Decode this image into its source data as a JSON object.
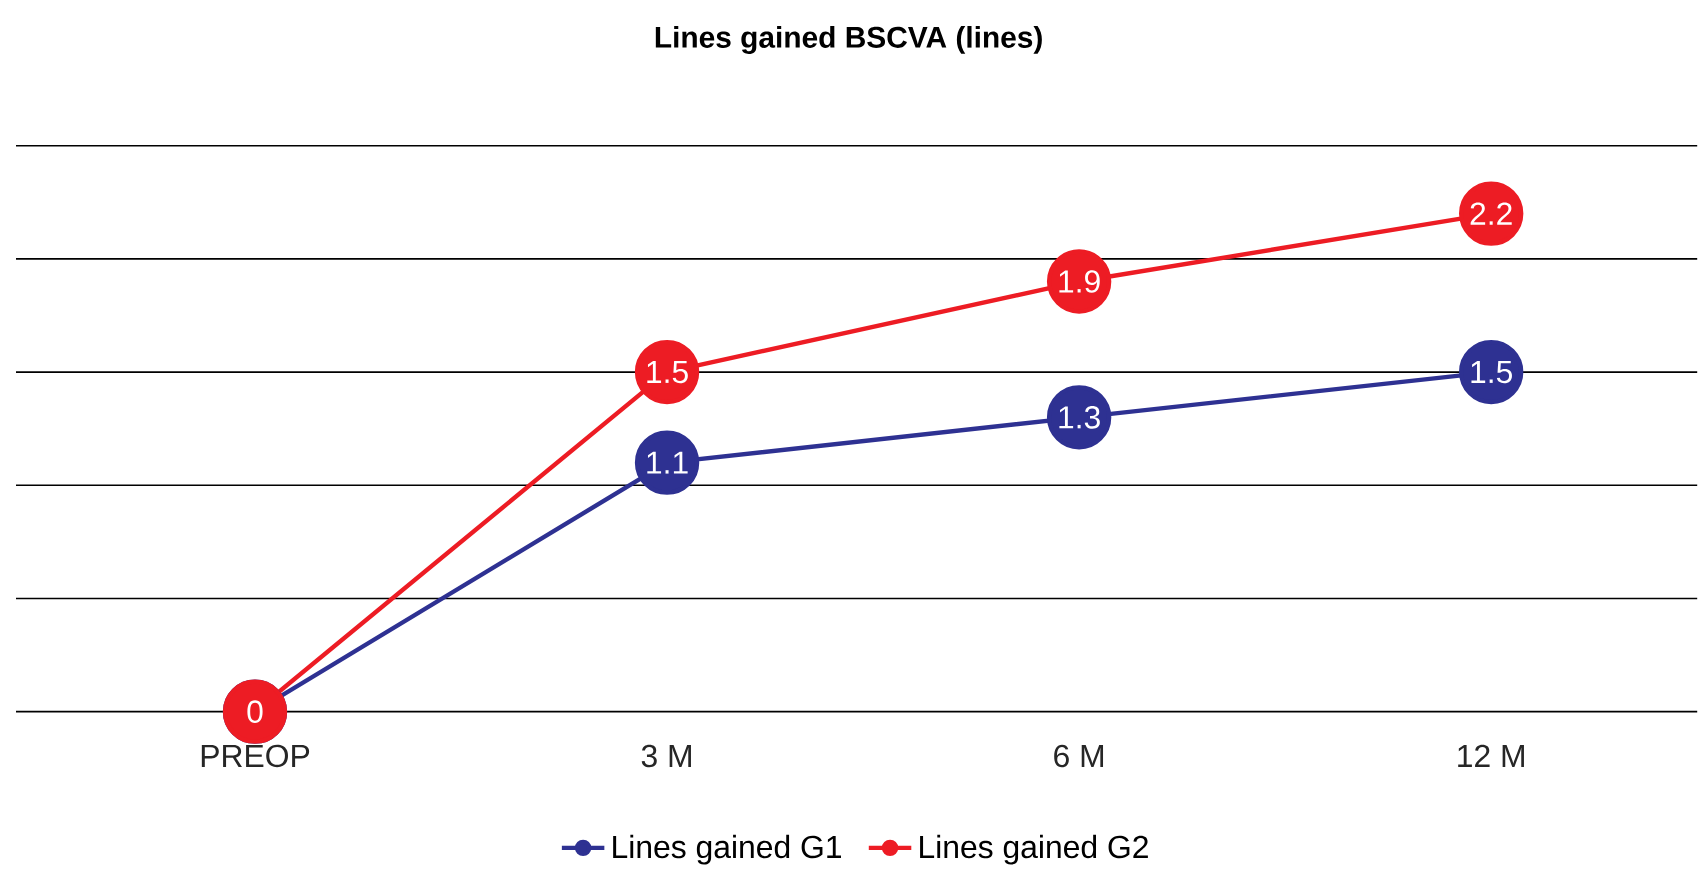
{
  "chart_data": {
    "type": "line",
    "title": "Lines gained BSCVA (lines)",
    "categories": [
      "PREOP",
      "3 M",
      "6 M",
      "12 M"
    ],
    "series": [
      {
        "name": "Lines gained G1",
        "color": "#2e3192",
        "values": [
          0,
          1.1,
          1.3,
          1.5
        ],
        "value_labels": [
          null,
          "1.1",
          "1.3",
          "1.5"
        ]
      },
      {
        "name": "Lines gained G2",
        "color": "#ed1c24",
        "values": [
          0,
          1.5,
          1.9,
          2.2
        ],
        "value_labels": [
          "0",
          "1.5",
          "1.9",
          "2.2"
        ]
      }
    ],
    "grid": "y",
    "tick_labels": "x",
    "legend": "bottom",
    "marker": "circle",
    "line_style": "solid"
  }
}
